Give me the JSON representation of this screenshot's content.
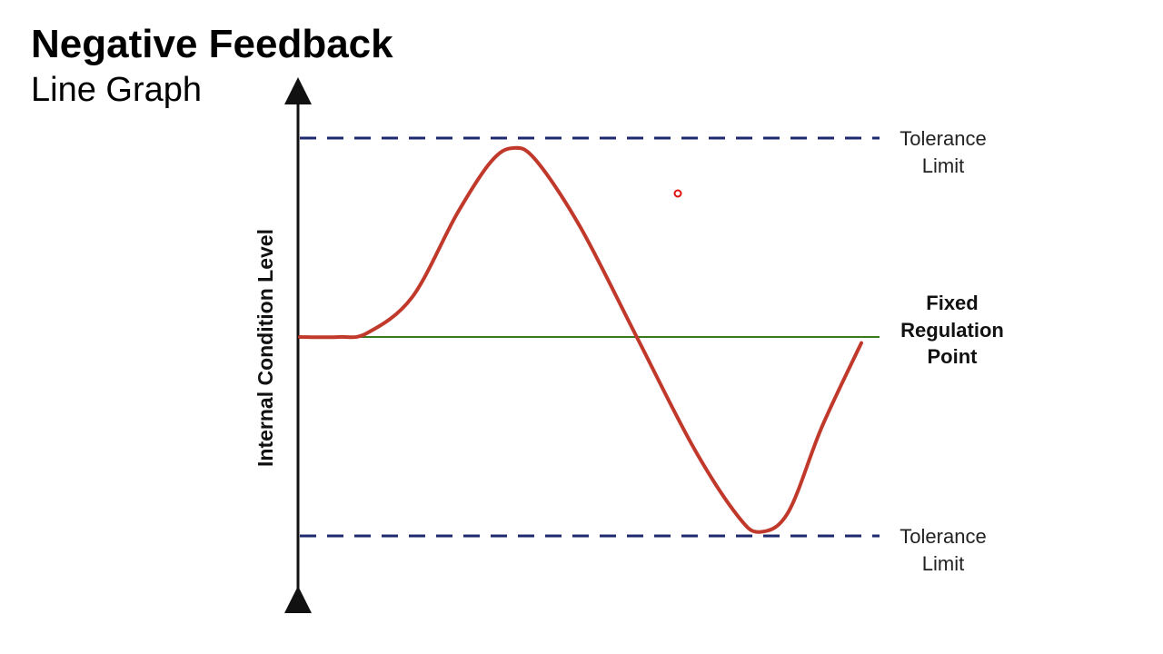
{
  "slide": {
    "title": "Negative Feedback",
    "subtitle": "Line Graph"
  },
  "chart_data": {
    "type": "line",
    "title": "",
    "xlabel": "",
    "ylabel": "Internal Condition Level",
    "ylim": [
      -1,
      1
    ],
    "reference_lines": {
      "set_point": {
        "label_lines": [
          "Fixed",
          "Regulation",
          "Point"
        ],
        "value": 0,
        "color": "#3a7a1e",
        "style": "solid"
      },
      "upper_tolerance": {
        "label_lines": [
          "Tolerance",
          "Limit"
        ],
        "value": 1,
        "color": "#1f2a6e",
        "style": "dashed"
      },
      "lower_tolerance": {
        "label_lines": [
          "Tolerance",
          "Limit"
        ],
        "value": -1,
        "color": "#1f2a6e",
        "style": "dashed"
      }
    },
    "series": [
      {
        "color": "#c0392b",
        "x": [
          0,
          0.07,
          0.12,
          0.2,
          0.28,
          0.34,
          0.38,
          0.42,
          0.5,
          0.6,
          0.7,
          0.78,
          0.82,
          0.87,
          0.93,
          1.0
        ],
        "y": [
          0,
          0,
          0.02,
          0.2,
          0.62,
          0.88,
          0.95,
          0.89,
          0.55,
          0.0,
          -0.55,
          -0.9,
          -0.98,
          -0.88,
          -0.45,
          -0.03
        ]
      }
    ]
  }
}
